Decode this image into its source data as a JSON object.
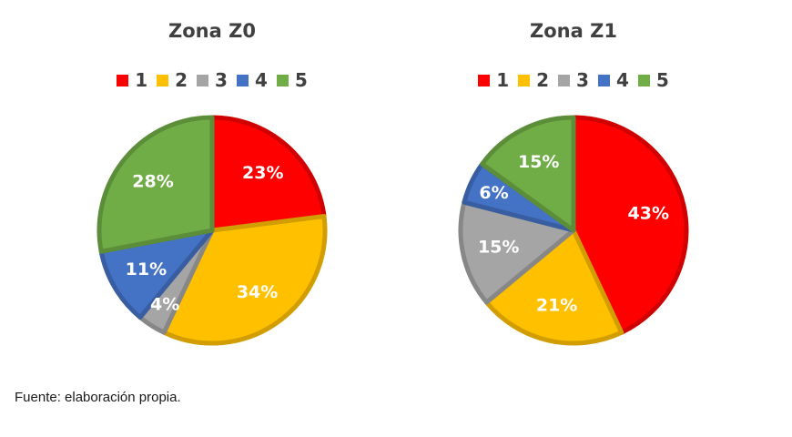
{
  "chart_data": [
    {
      "type": "pie",
      "title": "Zona Z0",
      "legend": [
        "1",
        "2",
        "3",
        "4",
        "5"
      ],
      "legend_placement": "top",
      "values": [
        23,
        34,
        4,
        11,
        28
      ],
      "labels": [
        "23%",
        "34%",
        "4%",
        "11%",
        "28%"
      ],
      "colors": [
        "#ff0000",
        "#ffc000",
        "#a5a5a5",
        "#4472c4",
        "#70ad47"
      ]
    },
    {
      "type": "pie",
      "title": "Zona Z1",
      "legend": [
        "1",
        "2",
        "3",
        "4",
        "5"
      ],
      "legend_placement": "top",
      "values": [
        43,
        21,
        15,
        6,
        15
      ],
      "labels": [
        "43%",
        "21%",
        "15%",
        "6%",
        "15%"
      ],
      "colors": [
        "#ff0000",
        "#ffc000",
        "#a5a5a5",
        "#4472c4",
        "#70ad47"
      ]
    }
  ],
  "footnote": "Fuente: elaboración propia."
}
